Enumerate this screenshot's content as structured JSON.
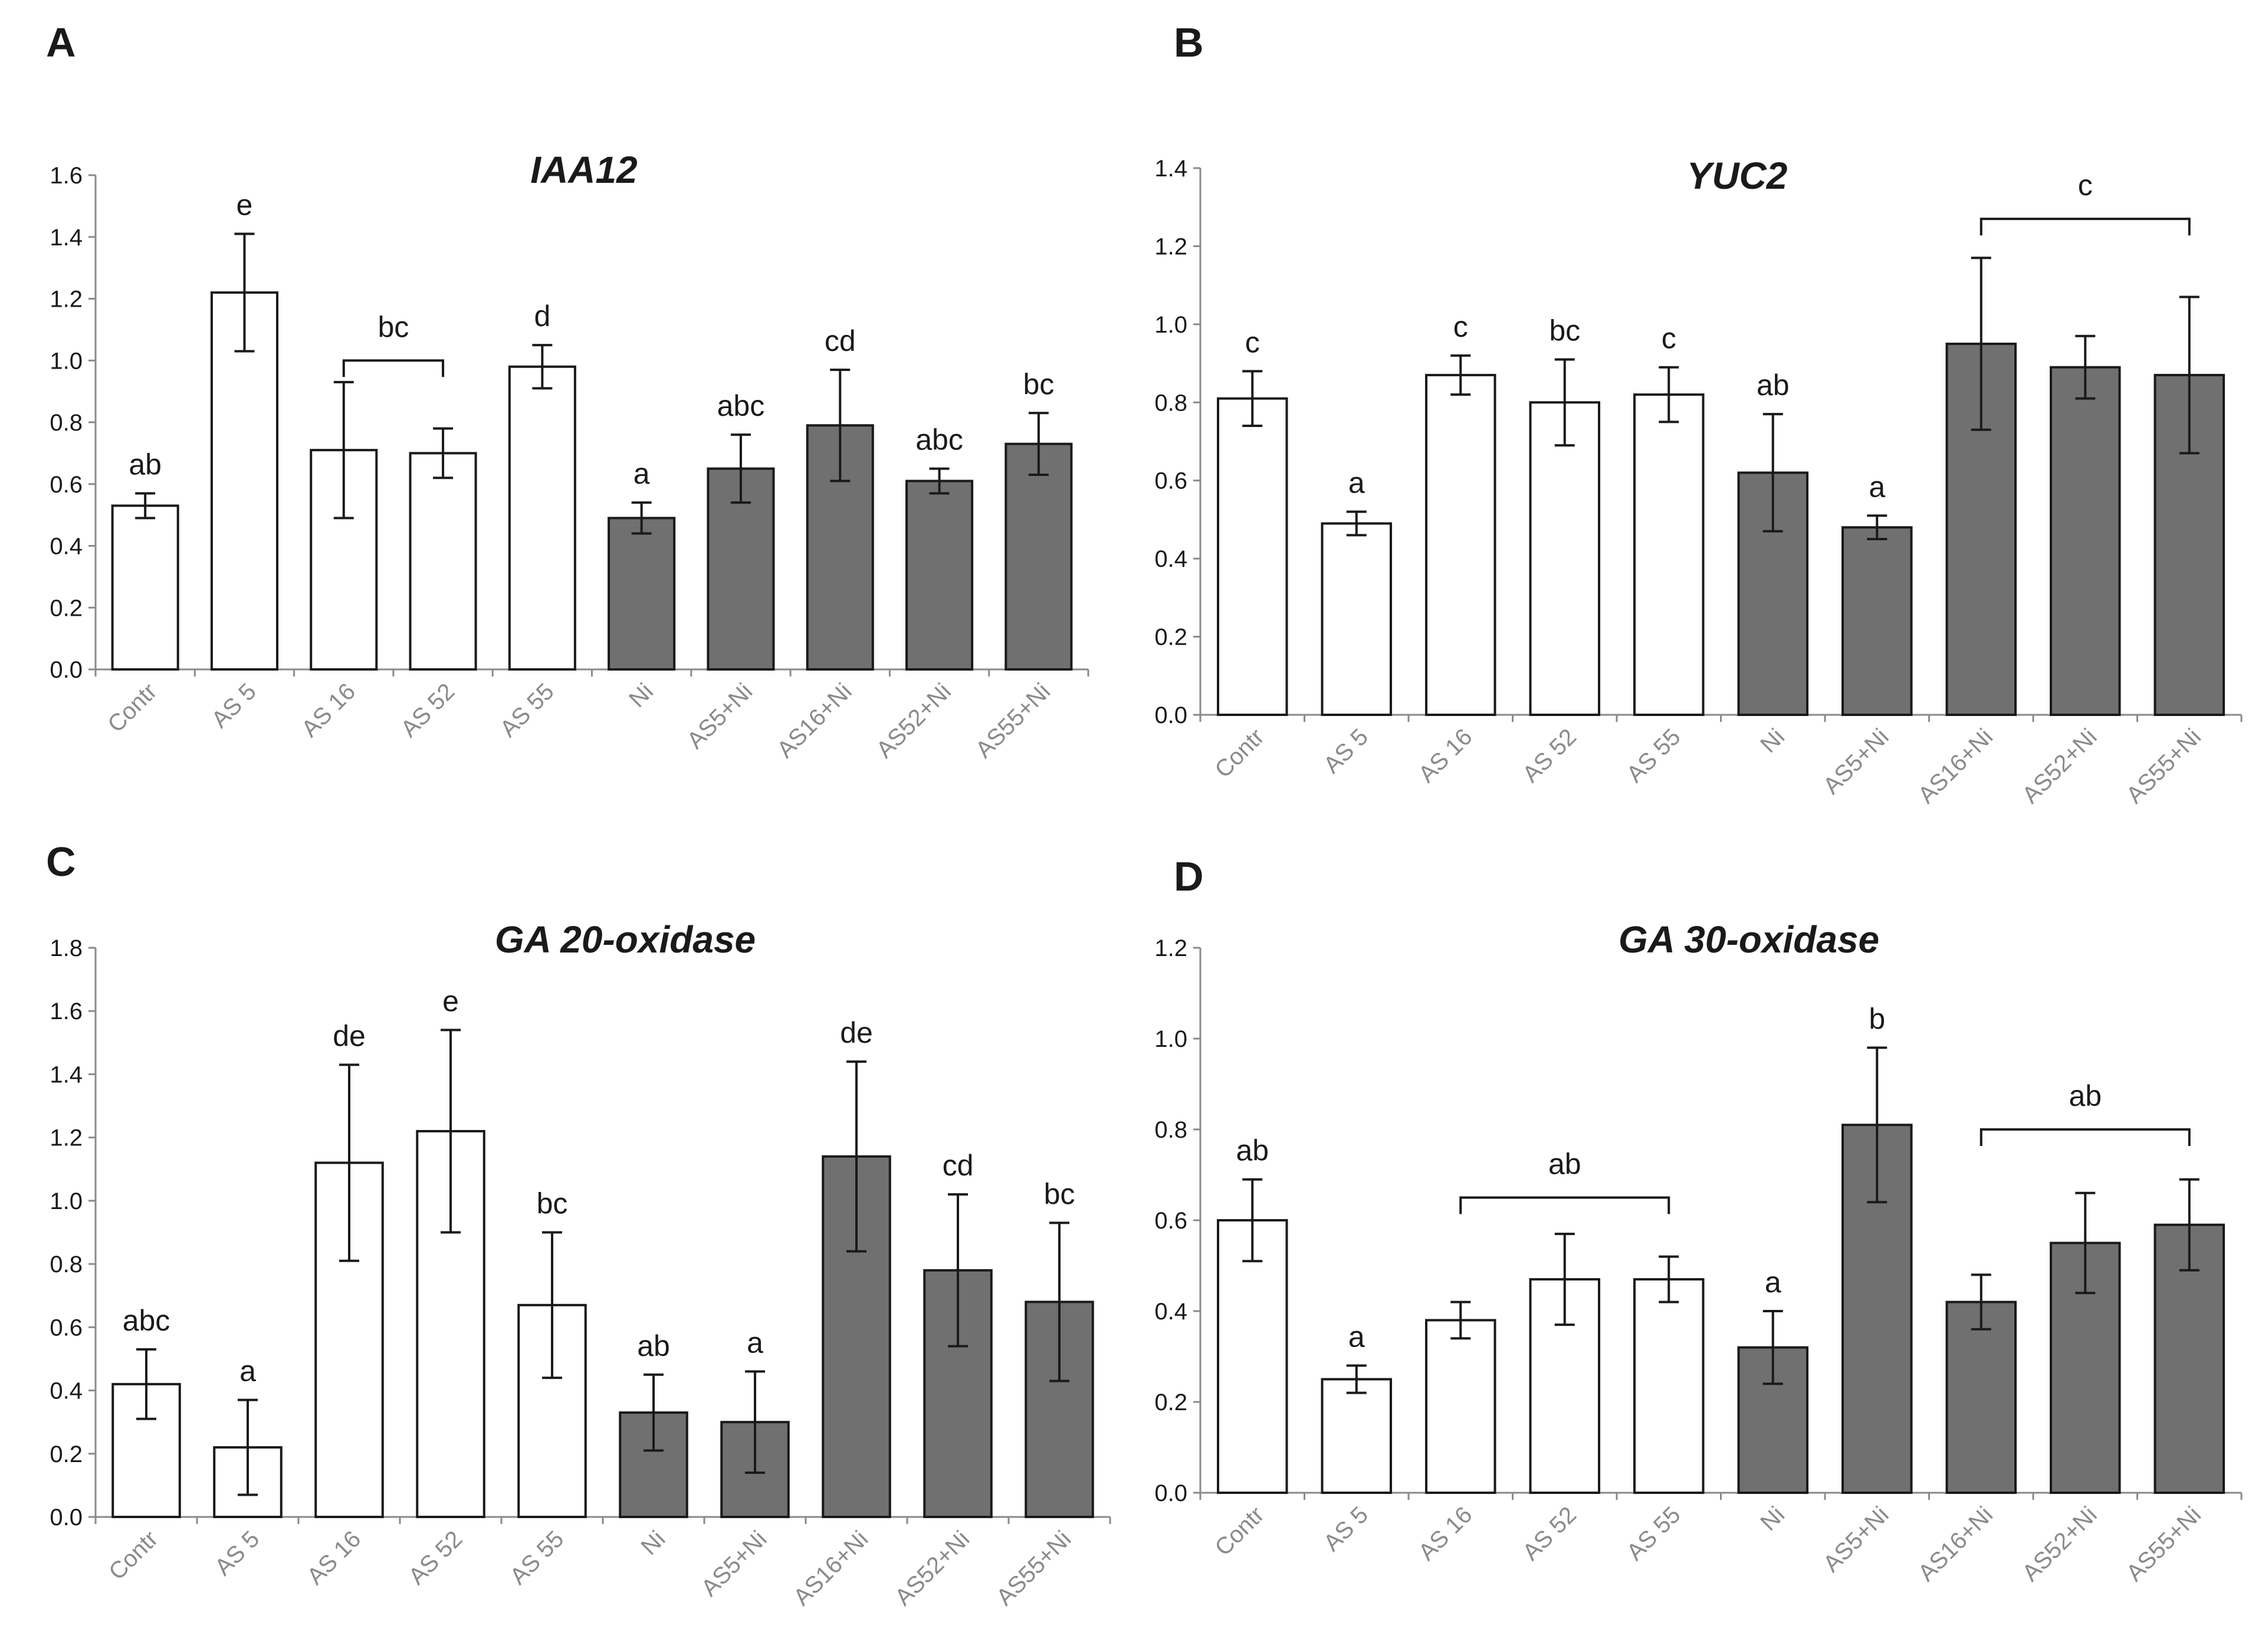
{
  "chart_data": [
    {
      "type": "bar",
      "panel": "A",
      "title": "IAA12",
      "xlabel": "",
      "ylabel": "",
      "ylim": [
        0,
        1.6
      ],
      "yticks": [
        "0.0",
        "0.2",
        "0.4",
        "0.6",
        "0.8",
        "1.0",
        "1.2",
        "1.4",
        "1.6"
      ],
      "categories": [
        "Contr",
        "AS 5",
        "AS 16",
        "AS 52",
        "AS 55",
        "Ni",
        "AS5+Ni",
        "AS16+Ni",
        "AS52+Ni",
        "AS55+Ni"
      ],
      "values": [
        0.53,
        1.22,
        0.71,
        0.7,
        0.98,
        0.49,
        0.65,
        0.79,
        0.61,
        0.73
      ],
      "errors": [
        0.04,
        0.19,
        0.22,
        0.08,
        0.07,
        0.05,
        0.11,
        0.18,
        0.04,
        0.1
      ],
      "fills": [
        "#ffffff",
        "#ffffff",
        "#ffffff",
        "#ffffff",
        "#ffffff",
        "#707070",
        "#707070",
        "#707070",
        "#707070",
        "#707070"
      ],
      "letters": [
        "ab",
        "e",
        "",
        "",
        "d",
        "a",
        "abc",
        "cd",
        "abc",
        "bc"
      ],
      "brackets": [
        {
          "from": 2,
          "to": 3,
          "label": "bc",
          "level": 1.0
        }
      ]
    },
    {
      "type": "bar",
      "panel": "B",
      "title": "YUC2",
      "xlabel": "",
      "ylabel": "",
      "ylim": [
        0,
        1.4
      ],
      "yticks": [
        "0.0",
        "0.2",
        "0.4",
        "0.6",
        "0.8",
        "1.0",
        "1.2",
        "1.4"
      ],
      "categories": [
        "Contr",
        "AS 5",
        "AS 16",
        "AS 52",
        "AS 55",
        "Ni",
        "AS5+Ni",
        "AS16+Ni",
        "AS52+Ni",
        "AS55+Ni"
      ],
      "values": [
        0.81,
        0.49,
        0.87,
        0.8,
        0.82,
        0.62,
        0.48,
        0.95,
        0.89,
        0.87
      ],
      "errors": [
        0.07,
        0.03,
        0.05,
        0.11,
        0.07,
        0.15,
        0.03,
        0.22,
        0.08,
        0.2
      ],
      "fills": [
        "#ffffff",
        "#ffffff",
        "#ffffff",
        "#ffffff",
        "#ffffff",
        "#707070",
        "#707070",
        "#707070",
        "#707070",
        "#707070"
      ],
      "letters": [
        "c",
        "a",
        "c",
        "bc",
        "c",
        "ab",
        "a",
        "",
        "",
        ""
      ],
      "brackets": [
        {
          "from": 7,
          "to": 9,
          "label": "c",
          "level": 1.27
        }
      ]
    },
    {
      "type": "bar",
      "panel": "C",
      "title": "GA 20-oxidase",
      "xlabel": "",
      "ylabel": "",
      "ylim": [
        0,
        1.8
      ],
      "yticks": [
        "0.0",
        "0.2",
        "0.4",
        "0.6",
        "0.8",
        "1.0",
        "1.2",
        "1.4",
        "1.6",
        "1.8"
      ],
      "categories": [
        "Contr",
        "AS 5",
        "AS 16",
        "AS 52",
        "AS 55",
        "Ni",
        "AS5+Ni",
        "AS16+Ni",
        "AS52+Ni",
        "AS55+Ni"
      ],
      "values": [
        0.42,
        0.22,
        1.12,
        1.22,
        0.67,
        0.33,
        0.3,
        1.14,
        0.78,
        0.68
      ],
      "errors": [
        0.11,
        0.15,
        0.31,
        0.32,
        0.23,
        0.12,
        0.16,
        0.3,
        0.24,
        0.25
      ],
      "fills": [
        "#ffffff",
        "#ffffff",
        "#ffffff",
        "#ffffff",
        "#ffffff",
        "#707070",
        "#707070",
        "#707070",
        "#707070",
        "#707070"
      ],
      "letters": [
        "abc",
        "a",
        "de",
        "e",
        "bc",
        "ab",
        "a",
        "de",
        "cd",
        "bc"
      ],
      "brackets": []
    },
    {
      "type": "bar",
      "panel": "D",
      "title": "GA 30-oxidase",
      "xlabel": "",
      "ylabel": "",
      "ylim": [
        0,
        1.2
      ],
      "yticks": [
        "0.0",
        "0.2",
        "0.4",
        "0.6",
        "0.8",
        "1.0",
        "1.2"
      ],
      "categories": [
        "Contr",
        "AS 5",
        "AS 16",
        "AS 52",
        "AS 55",
        "Ni",
        "AS5+Ni",
        "AS16+Ni",
        "AS52+Ni",
        "AS55+Ni"
      ],
      "values": [
        0.6,
        0.25,
        0.38,
        0.47,
        0.47,
        0.32,
        0.81,
        0.42,
        0.55,
        0.59
      ],
      "errors": [
        0.09,
        0.03,
        0.04,
        0.1,
        0.05,
        0.08,
        0.17,
        0.06,
        0.11,
        0.1
      ],
      "fills": [
        "#ffffff",
        "#ffffff",
        "#ffffff",
        "#ffffff",
        "#ffffff",
        "#707070",
        "#707070",
        "#707070",
        "#707070",
        "#707070"
      ],
      "letters": [
        "ab",
        "a",
        "",
        "",
        "",
        "a",
        "b",
        "",
        "",
        ""
      ],
      "brackets": [
        {
          "from": 2,
          "to": 4,
          "label": "ab",
          "level": 0.65
        },
        {
          "from": 7,
          "to": 9,
          "label": "ab",
          "level": 0.8
        }
      ]
    }
  ]
}
